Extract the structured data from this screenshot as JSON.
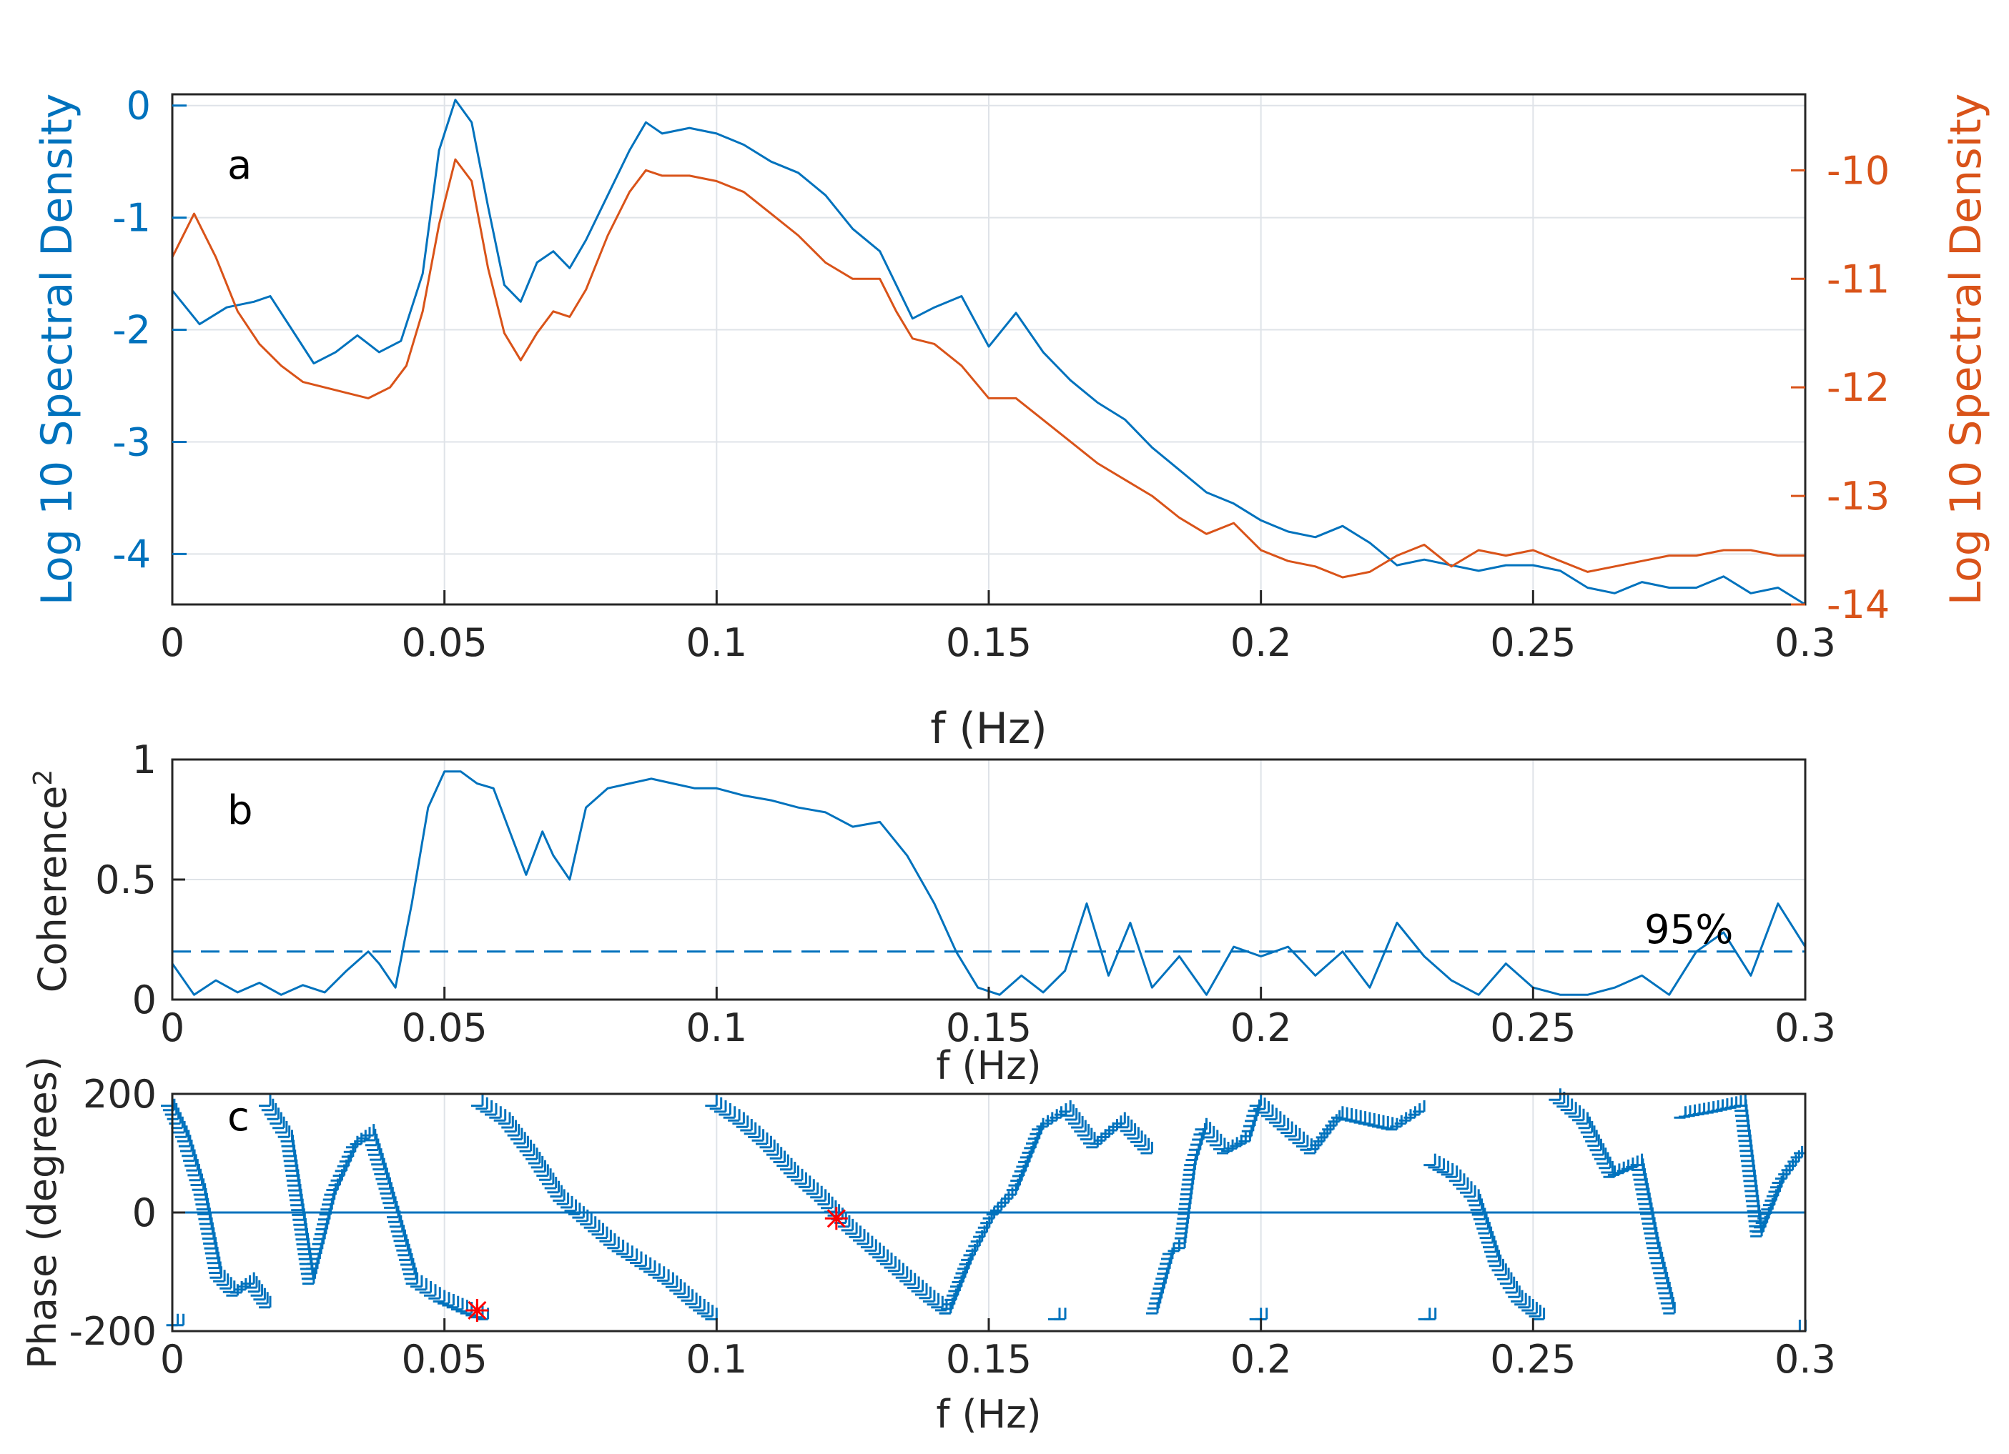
{
  "chart_data": [
    {
      "panel": "a",
      "type": "line",
      "xlabel": "f (Hz)",
      "ylabel_left": "Log 10 Spectral Density",
      "ylabel_right": "Log 10 Spectral Density",
      "xlim": [
        0,
        0.3
      ],
      "ylim_left": [
        -4.45,
        0.1
      ],
      "ylim_right": [
        -14,
        -9.3
      ],
      "xticks": [
        "0",
        "0.05",
        "0.1",
        "0.15",
        "0.2",
        "0.25",
        "0.3"
      ],
      "yticks_left": [
        "0",
        "-1",
        "-2",
        "-3",
        "-4"
      ],
      "yticks_right": [
        "-10",
        "-11",
        "-12",
        "-13",
        "-14"
      ],
      "grid": true,
      "colors": {
        "left": "#0072bd",
        "right": "#d95319"
      },
      "series": [
        {
          "name": "left",
          "axis": "left",
          "x": [
            0,
            0.005,
            0.01,
            0.015,
            0.018,
            0.022,
            0.026,
            0.03,
            0.034,
            0.038,
            0.042,
            0.046,
            0.049,
            0.052,
            0.055,
            0.058,
            0.061,
            0.064,
            0.067,
            0.07,
            0.073,
            0.076,
            0.08,
            0.084,
            0.087,
            0.09,
            0.095,
            0.1,
            0.105,
            0.11,
            0.115,
            0.12,
            0.125,
            0.13,
            0.133,
            0.136,
            0.14,
            0.145,
            0.15,
            0.155,
            0.16,
            0.165,
            0.17,
            0.175,
            0.18,
            0.185,
            0.19,
            0.195,
            0.2,
            0.205,
            0.21,
            0.215,
            0.22,
            0.225,
            0.23,
            0.235,
            0.24,
            0.245,
            0.25,
            0.255,
            0.26,
            0.265,
            0.27,
            0.275,
            0.28,
            0.285,
            0.29,
            0.295,
            0.3
          ],
          "y": [
            -1.65,
            -1.95,
            -1.8,
            -1.75,
            -1.7,
            -2.0,
            -2.3,
            -2.2,
            -2.05,
            -2.2,
            -2.1,
            -1.5,
            -0.4,
            0.05,
            -0.15,
            -0.9,
            -1.6,
            -1.75,
            -1.4,
            -1.3,
            -1.45,
            -1.2,
            -0.8,
            -0.4,
            -0.15,
            -0.25,
            -0.2,
            -0.25,
            -0.35,
            -0.5,
            -0.6,
            -0.8,
            -1.1,
            -1.3,
            -1.6,
            -1.9,
            -1.8,
            -1.7,
            -2.15,
            -1.85,
            -2.2,
            -2.45,
            -2.65,
            -2.8,
            -3.05,
            -3.25,
            -3.45,
            -3.55,
            -3.7,
            -3.8,
            -3.85,
            -3.75,
            -3.9,
            -4.1,
            -4.05,
            -4.1,
            -4.15,
            -4.1,
            -4.1,
            -4.15,
            -4.3,
            -4.35,
            -4.25,
            -4.3,
            -4.3,
            -4.2,
            -4.35,
            -4.3,
            -4.45
          ]
        },
        {
          "name": "right",
          "axis": "right",
          "x": [
            0,
            0.004,
            0.008,
            0.012,
            0.016,
            0.02,
            0.024,
            0.028,
            0.032,
            0.036,
            0.04,
            0.043,
            0.046,
            0.049,
            0.052,
            0.055,
            0.058,
            0.061,
            0.064,
            0.067,
            0.07,
            0.073,
            0.076,
            0.08,
            0.084,
            0.087,
            0.09,
            0.095,
            0.1,
            0.105,
            0.11,
            0.115,
            0.12,
            0.125,
            0.13,
            0.133,
            0.136,
            0.14,
            0.145,
            0.15,
            0.155,
            0.16,
            0.165,
            0.17,
            0.175,
            0.18,
            0.185,
            0.19,
            0.195,
            0.2,
            0.205,
            0.21,
            0.215,
            0.22,
            0.225,
            0.23,
            0.235,
            0.24,
            0.245,
            0.25,
            0.255,
            0.26,
            0.265,
            0.27,
            0.275,
            0.28,
            0.285,
            0.29,
            0.295,
            0.3
          ],
          "y": [
            -10.8,
            -10.4,
            -10.8,
            -11.3,
            -11.6,
            -11.8,
            -11.95,
            -12.0,
            -12.05,
            -12.1,
            -12.0,
            -11.8,
            -11.3,
            -10.5,
            -9.9,
            -10.1,
            -10.9,
            -11.5,
            -11.75,
            -11.5,
            -11.3,
            -11.35,
            -11.1,
            -10.6,
            -10.2,
            -10.0,
            -10.05,
            -10.05,
            -10.1,
            -10.2,
            -10.4,
            -10.6,
            -10.85,
            -11.0,
            -11.0,
            -11.3,
            -11.55,
            -11.6,
            -11.8,
            -12.1,
            -12.1,
            -12.3,
            -12.5,
            -12.7,
            -12.85,
            -13.0,
            -13.2,
            -13.35,
            -13.25,
            -13.5,
            -13.6,
            -13.65,
            -13.75,
            -13.7,
            -13.55,
            -13.45,
            -13.65,
            -13.5,
            -13.55,
            -13.5,
            -13.6,
            -13.7,
            -13.65,
            -13.6,
            -13.55,
            -13.55,
            -13.5,
            -13.5,
            -13.55,
            -13.55
          ]
        }
      ],
      "annotation": "a"
    },
    {
      "panel": "b",
      "type": "line",
      "xlabel": "f (Hz)",
      "ylabel": "Coherence",
      "ylabel_superscript": "2",
      "xlim": [
        0,
        0.3
      ],
      "ylim": [
        0,
        1
      ],
      "xticks": [
        "0",
        "0.05",
        "0.1",
        "0.15",
        "0.2",
        "0.25",
        "0.3"
      ],
      "yticks": [
        "0",
        "0.5",
        "1"
      ],
      "grid": true,
      "color": "#0072bd",
      "series": [
        {
          "name": "coherence",
          "x": [
            0,
            0.004,
            0.008,
            0.012,
            0.016,
            0.02,
            0.024,
            0.028,
            0.032,
            0.036,
            0.038,
            0.041,
            0.044,
            0.047,
            0.05,
            0.053,
            0.056,
            0.059,
            0.062,
            0.065,
            0.068,
            0.07,
            0.073,
            0.076,
            0.08,
            0.084,
            0.088,
            0.092,
            0.096,
            0.1,
            0.105,
            0.11,
            0.115,
            0.12,
            0.125,
            0.13,
            0.135,
            0.14,
            0.144,
            0.148,
            0.152,
            0.156,
            0.16,
            0.164,
            0.168,
            0.172,
            0.176,
            0.18,
            0.185,
            0.19,
            0.195,
            0.2,
            0.205,
            0.21,
            0.215,
            0.22,
            0.225,
            0.23,
            0.235,
            0.24,
            0.245,
            0.25,
            0.255,
            0.26,
            0.265,
            0.27,
            0.275,
            0.28,
            0.285,
            0.29,
            0.295,
            0.3
          ],
          "y": [
            0.15,
            0.02,
            0.08,
            0.03,
            0.07,
            0.02,
            0.06,
            0.03,
            0.12,
            0.2,
            0.15,
            0.05,
            0.4,
            0.8,
            0.95,
            0.95,
            0.9,
            0.88,
            0.7,
            0.52,
            0.7,
            0.6,
            0.5,
            0.8,
            0.88,
            0.9,
            0.92,
            0.9,
            0.88,
            0.88,
            0.85,
            0.83,
            0.8,
            0.78,
            0.72,
            0.74,
            0.6,
            0.4,
            0.2,
            0.05,
            0.02,
            0.1,
            0.03,
            0.12,
            0.4,
            0.1,
            0.32,
            0.05,
            0.18,
            0.02,
            0.22,
            0.18,
            0.22,
            0.1,
            0.2,
            0.05,
            0.32,
            0.18,
            0.08,
            0.02,
            0.15,
            0.05,
            0.02,
            0.02,
            0.05,
            0.1,
            0.02,
            0.2,
            0.28,
            0.1,
            0.4,
            0.22
          ]
        },
        {
          "name": "95% level",
          "x": [
            0,
            0.3
          ],
          "y": [
            0.2,
            0.2
          ],
          "style": "dashed"
        }
      ],
      "annotation": "b",
      "threshold_label": "95%"
    },
    {
      "panel": "c",
      "type": "scatter",
      "xlabel": "f (Hz)",
      "ylabel": "Phase (degrees)",
      "xlim": [
        0,
        0.3
      ],
      "ylim": [
        -200,
        200
      ],
      "xticks": [
        "0",
        "0.05",
        "0.1",
        "0.15",
        "0.2",
        "0.25",
        "0.3"
      ],
      "yticks": [
        "200",
        "0",
        "-200"
      ],
      "grid": true,
      "color": "#0072bd",
      "highlight_color": "#ff0000",
      "branches": [
        {
          "x": [
            0,
            0.003,
            0.006,
            0.009,
            0.012,
            0.015,
            0.018
          ],
          "y": [
            180,
            120,
            30,
            -110,
            -140,
            -120,
            -160
          ]
        },
        {
          "x": [
            0.018,
            0.022,
            0.026,
            0.03,
            0.034,
            0.037,
            0.04,
            0.045,
            0.05,
            0.055,
            0.058
          ],
          "y": [
            180,
            120,
            -120,
            30,
            110,
            130,
            40,
            -120,
            -150,
            -170,
            -180
          ]
        },
        {
          "x": [
            0.057,
            0.062,
            0.067,
            0.072,
            0.077,
            0.082,
            0.087,
            0.092,
            0.097,
            0.1
          ],
          "y": [
            180,
            150,
            90,
            20,
            -20,
            -60,
            -90,
            -120,
            -160,
            -180
          ]
        },
        {
          "x": [
            0.1,
            0.105,
            0.11,
            0.115,
            0.12,
            0.125,
            0.13,
            0.135,
            0.14,
            0.143
          ],
          "y": [
            180,
            150,
            110,
            60,
            20,
            -30,
            -70,
            -110,
            -150,
            -170
          ]
        },
        {
          "x": [
            0.143,
            0.147,
            0.151,
            0.155,
            0.16,
            0.165,
            0.17,
            0.175,
            0.18
          ],
          "y": [
            -170,
            -80,
            -10,
            30,
            140,
            170,
            110,
            150,
            100
          ]
        },
        {
          "x": [
            0.181,
            0.184,
            0.186,
            0.188,
            0.19,
            0.194,
            0.198,
            0.2,
            0.205,
            0.21,
            0.215,
            0.22,
            0.225,
            0.23
          ],
          "y": [
            -170,
            -70,
            -60,
            80,
            140,
            100,
            120,
            180,
            140,
            100,
            160,
            150,
            140,
            170
          ]
        },
        {
          "x": [
            0.232,
            0.236,
            0.24,
            0.244,
            0.248,
            0.252
          ],
          "y": [
            80,
            60,
            20,
            -90,
            -150,
            -180
          ]
        },
        {
          "x": [
            0.255,
            0.26,
            0.265,
            0.27,
            0.273,
            0.276
          ],
          "y": [
            190,
            150,
            60,
            80,
            -60,
            -170
          ]
        },
        {
          "x": [
            0.278,
            0.284,
            0.289,
            0.292,
            0.296,
            0.3
          ],
          "y": [
            160,
            170,
            180,
            -40,
            50,
            100
          ]
        }
      ],
      "isolated_points": [
        {
          "x": 0.001,
          "y": -190
        },
        {
          "x": 0.163,
          "y": -180
        },
        {
          "x": 0.2,
          "y": -180
        },
        {
          "x": 0.231,
          "y": -180
        },
        {
          "x": 0.299,
          "y": -200
        }
      ],
      "highlight_points": [
        {
          "x": 0.056,
          "y": -165
        },
        {
          "x": 0.122,
          "y": -10
        }
      ],
      "zero_line": 0,
      "annotation": "c"
    }
  ]
}
